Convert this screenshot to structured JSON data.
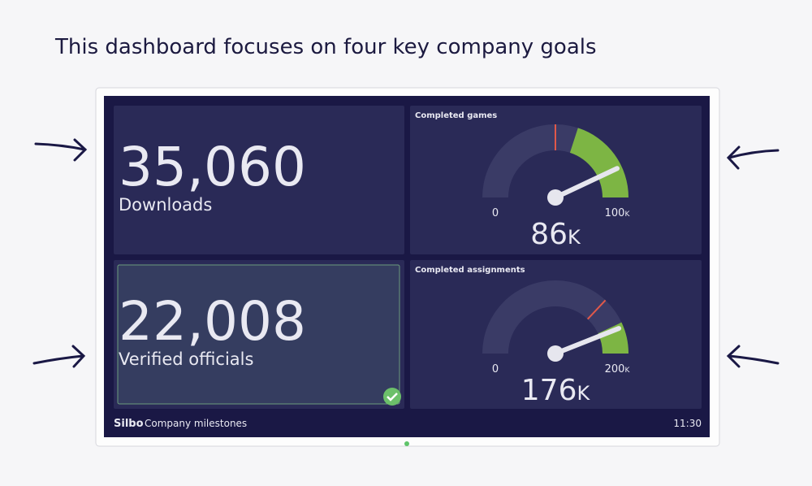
{
  "heading": "This dashboard focuses on four key company goals",
  "tiles": [
    {
      "value": "35,060",
      "label": "Downloads"
    },
    {
      "value": "22,008",
      "label": "Verified officials"
    }
  ],
  "gauges": [
    {
      "title": "Completed games",
      "min": 0,
      "max": 100,
      "value": 86,
      "unit": "K",
      "target": 50,
      "goal_from": 60
    },
    {
      "title": "Completed assignments",
      "min": 0,
      "max": 200,
      "value": 176,
      "unit": "K",
      "target": 148,
      "goal_from": 172
    }
  ],
  "footer": {
    "brand": "Silbo",
    "name": "Company milestones",
    "time": "11:30"
  }
}
